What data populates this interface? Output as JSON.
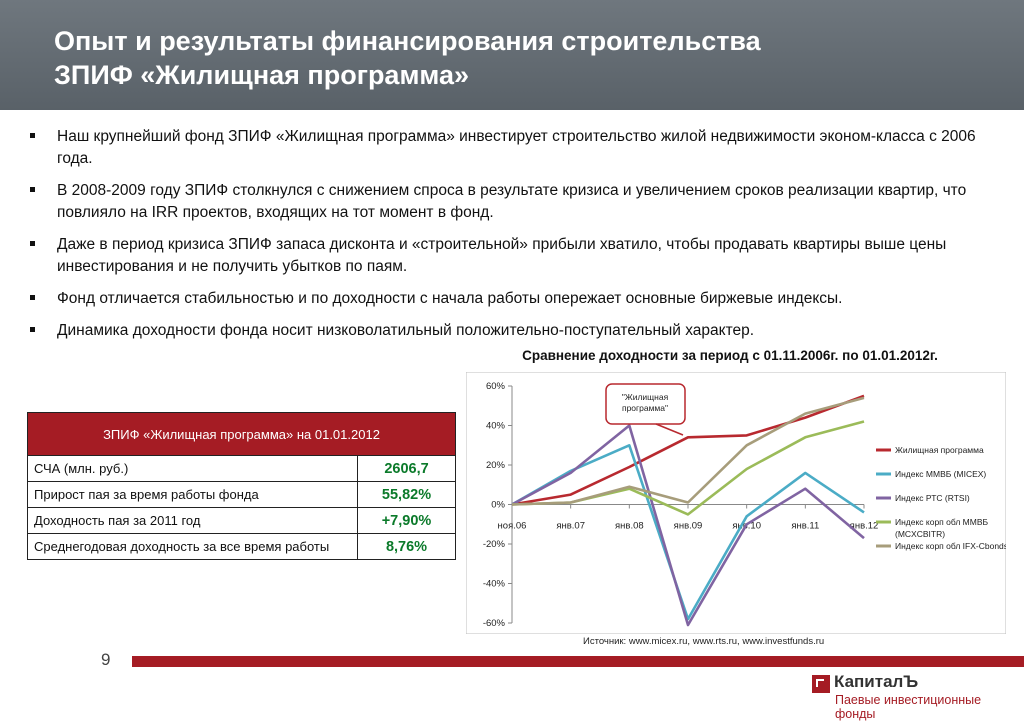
{
  "header": {
    "title_line1": "Опыт и результаты финансирования строительства",
    "title_line2": "ЗПИФ «Жилищная программа»"
  },
  "bullets": [
    "Наш крупнейший фонд ЗПИФ «Жилищная программа» инвестирует строительство жилой недвижимости эконом-класса с 2006 года.",
    "В 2008-2009 году ЗПИФ столкнулся с снижением спроса в результате кризиса и увеличением сроков реализации квартир, что повлияло на IRR проектов, входящих на тот момент в фонд.",
    "Даже в период кризиса ЗПИФ запаса дисконта и «строительной» прибыли хватило, чтобы продавать квартиры выше цены инвестирования и не получить убытков по паям.",
    "Фонд отличается стабильностью и по доходности с начала работы опережает основные биржевые индексы.",
    "Динамика доходности фонда носит низковолатильный положительно-поступательный характер."
  ],
  "table": {
    "header": "ЗПИФ «Жилищная программа» на 01.01.2012",
    "rows": [
      {
        "label": "СЧА (млн. руб.)",
        "value": "2606,7"
      },
      {
        "label": "Прирост пая за время работы фонда",
        "value": "55,82%"
      },
      {
        "label": "Доходность пая за 2011 год",
        "value": "+7,90%"
      },
      {
        "label": "Среднегодовая доходность за все время работы",
        "value": "8,76%"
      }
    ]
  },
  "chart_title": "Сравнение доходности за период с 01.11.2006г. по 01.01.2012г.",
  "chart_data": {
    "type": "line",
    "categories": [
      "ноя.06",
      "янв.07",
      "янв.08",
      "янв.09",
      "янв.10",
      "янв.11",
      "янв.12"
    ],
    "y_ticks": [
      "60%",
      "40%",
      "20%",
      "0%",
      "-20%",
      "-40%",
      "-60%"
    ],
    "ylim": [
      -60,
      60
    ],
    "grid": false,
    "legend_position": "right",
    "annotation": "\"Жилищная программа\"",
    "series": [
      {
        "name": "Жилищная программа",
        "color": "#b8292f",
        "values": [
          0,
          5,
          19,
          34,
          35,
          44,
          55
        ]
      },
      {
        "name": "Индекс ММВБ (MICEX)",
        "color": "#4bacc6",
        "values": [
          0,
          17,
          30,
          -58,
          -6,
          16,
          -4
        ]
      },
      {
        "name": "Индекс РТС (RTSI)",
        "color": "#8064a2",
        "values": [
          0,
          16,
          40,
          -61,
          -10,
          8,
          -17
        ]
      },
      {
        "name": "Индекс корп обл ММВБ (MCXCBITR)",
        "color": "#9bbb59",
        "values": [
          0,
          1,
          8,
          -5,
          18,
          34,
          42
        ]
      },
      {
        "name": "Индекс корп обл IFX-Cbonds",
        "color": "#a79d7b",
        "values": [
          0,
          1,
          9,
          1,
          30,
          46,
          54
        ]
      }
    ]
  },
  "source": "Источник: www.micex.ru, www.rts.ru, www.investfunds.ru",
  "footer": {
    "page_number": "9",
    "brand": "КапиталЪ",
    "tagline": "Паевые инвестиционные фонды",
    "brand_color": "#a51c24"
  }
}
